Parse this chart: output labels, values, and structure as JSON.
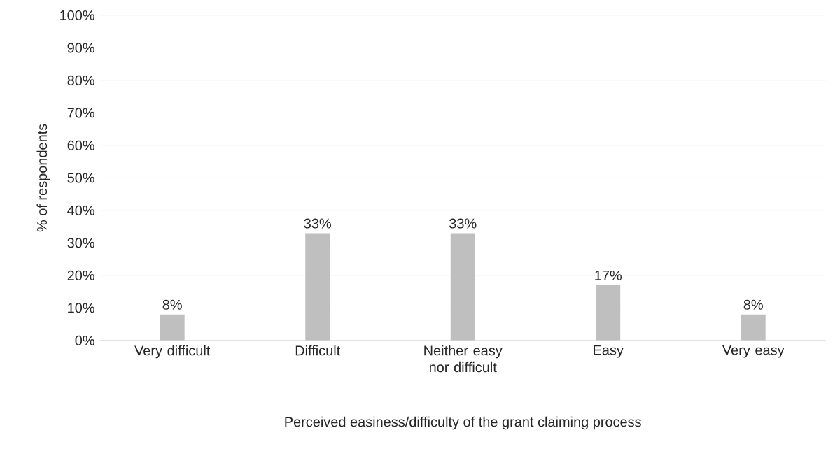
{
  "chart_data": {
    "type": "bar",
    "xlabel": "Perceived easiness/difficulty of the grant claiming process",
    "ylabel": "% of respondents",
    "categories": [
      "Very difficult",
      "Difficult",
      "Neither easy nor difficult",
      "Easy",
      "Very easy"
    ],
    "values": [
      8,
      33,
      33,
      17,
      8
    ],
    "value_labels": [
      "8%",
      "33%",
      "33%",
      "17%",
      "8%"
    ],
    "color": "#bfbfbf",
    "ylim": [
      0,
      100
    ],
    "yticks": [
      {
        "value": 0,
        "label": "0%"
      },
      {
        "value": 10,
        "label": "10%"
      },
      {
        "value": 20,
        "label": "20%"
      },
      {
        "value": 30,
        "label": "30%"
      },
      {
        "value": 40,
        "label": "40%"
      },
      {
        "value": 50,
        "label": "50%"
      },
      {
        "value": 60,
        "label": "60%"
      },
      {
        "value": 70,
        "label": "70%"
      },
      {
        "value": 80,
        "label": "80%"
      },
      {
        "value": 90,
        "label": "90%"
      },
      {
        "value": 100,
        "label": "100%"
      }
    ],
    "grid": "y"
  }
}
